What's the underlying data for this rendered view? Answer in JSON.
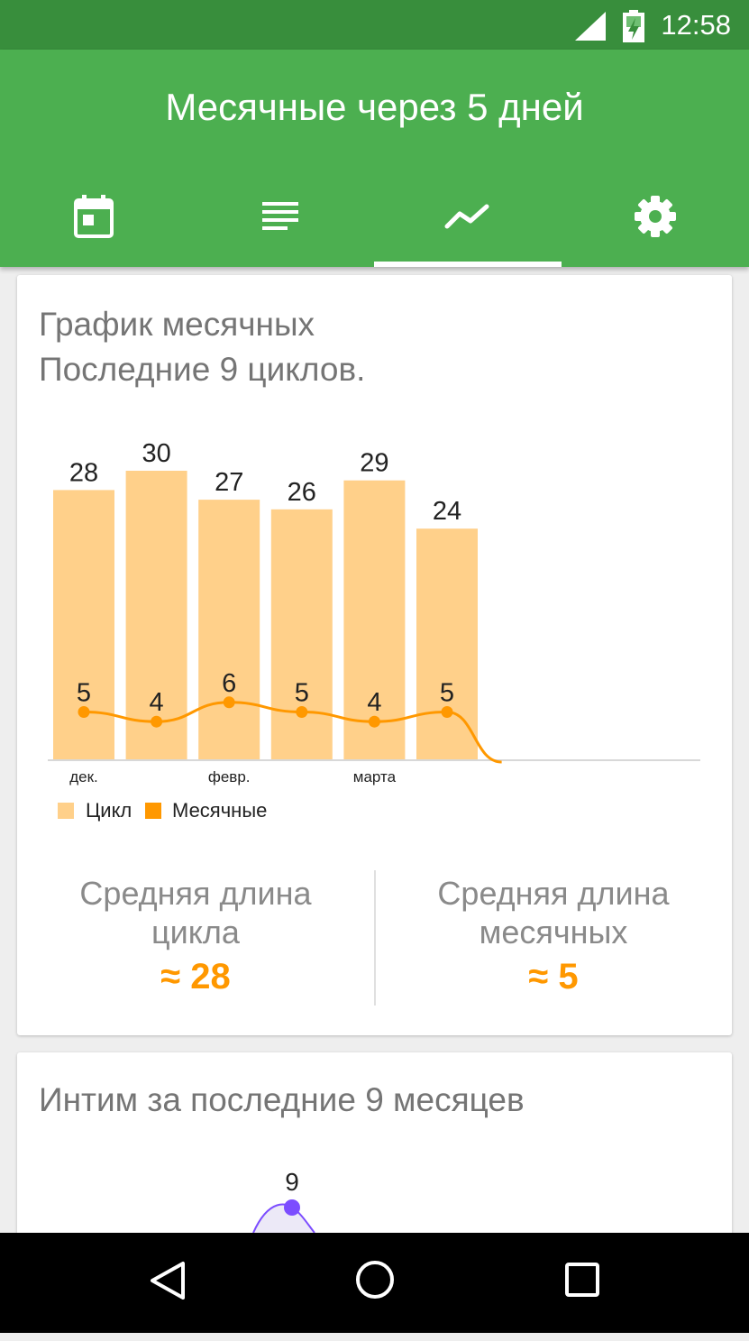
{
  "status_bar": {
    "time": "12:58"
  },
  "app_bar": {
    "title": "Месячные через 5 дней"
  },
  "tabs": [
    {
      "icon": "calendar-icon"
    },
    {
      "icon": "list-icon"
    },
    {
      "icon": "chart-line-icon",
      "selected": true
    },
    {
      "icon": "settings-gear-icon"
    }
  ],
  "cycle_card": {
    "title_line1": "График месячных",
    "title_line2": "Последние 9 циклов.",
    "avg_cycle_label_line1": "Средняя длина",
    "avg_cycle_label_line2": "цикла",
    "avg_cycle_value": "≈ 28",
    "avg_period_label_line1": "Средняя длина",
    "avg_period_label_line2": "месячных",
    "avg_period_value": "≈ 5"
  },
  "intimacy_card": {
    "title": "Интим за последние 9 месяцев",
    "visible_point_label": "9"
  },
  "colors": {
    "status_bar": "#388e3c",
    "app_bar": "#4caf50",
    "cycle_bar": "#ffd08a",
    "period_line": "#ff9800",
    "intimacy_line": "#7c4dff"
  },
  "chart_data": {
    "type": "bar",
    "categories": [
      "дек.",
      "",
      "февр.",
      "",
      "марта",
      ""
    ],
    "x_tick_labels": [
      "дек.",
      "февр.",
      "марта"
    ],
    "ylim": [
      0,
      32
    ],
    "series": [
      {
        "name": "Цикл",
        "type": "bar",
        "values": [
          28,
          30,
          27,
          26,
          29,
          24
        ]
      },
      {
        "name": "Месячные",
        "type": "line",
        "values": [
          5,
          4,
          6,
          5,
          4,
          5
        ]
      }
    ],
    "legend": [
      "Цикл",
      "Месячные"
    ],
    "legend_position": "bottom-left",
    "grid": false
  }
}
